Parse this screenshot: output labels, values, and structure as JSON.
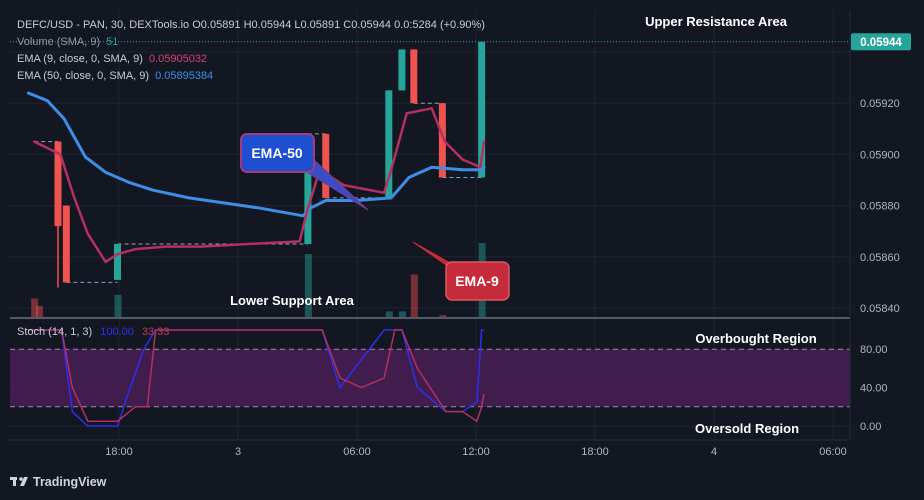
{
  "legend": {
    "line1": "DEFC/USD - PAN, 30, DEXTools.io  O0.05891  H0.05944  L0.05891  C0.05944  0.0:5284 (+0.90%)",
    "volume": "Volume (SMA, 9)",
    "volume_value": "51",
    "ema9": "EMA (9, close, 0, SMA, 9)",
    "ema9_value": "0.05905032",
    "ema50": "EMA (50, close, 0, SMA, 9)",
    "ema50_value": "0.05895384"
  },
  "stoch": {
    "label": "Stoch (14, 1, 3)",
    "k_value": "100.00",
    "d_value": "33.33"
  },
  "annotations": {
    "upper_resistance": "Upper Resistance Area",
    "lower_support": "Lower Support Area",
    "overbought": "Overbought Region",
    "oversold": "Oversold Region",
    "ema50_callout": "EMA-50",
    "ema9_callout": "EMA-9"
  },
  "price_tag": "0.05944",
  "footer": {
    "brand": "TradingView"
  },
  "colors": {
    "background": "#131722",
    "up": "#26a69a",
    "down": "#ef5350",
    "ema9": "#b5305f",
    "ema50": "#3d8ee6",
    "stoch_k": "#2e2ef0",
    "stoch_d": "#b23060",
    "stoch_band": "#4a1e55",
    "callout_blue": "#1e4fd1",
    "callout_red": "#c62b3b"
  },
  "chart_data": {
    "type": "candlestick",
    "symbol": "DEFC/USD",
    "interval": "30",
    "x_ticks": [
      "18:00",
      "3",
      "06:00",
      "12:00",
      "18:00",
      "4",
      "06:00"
    ],
    "y_ticks": [
      "0.05940",
      "0.05920",
      "0.05900",
      "0.05880",
      "0.05860",
      "0.05840"
    ],
    "y_tick_values": [
      0.0594,
      0.0592,
      0.059,
      0.0588,
      0.0586,
      0.0584
    ],
    "ylim": [
      0.05838,
      0.05952
    ],
    "grid": true,
    "candles": [
      {
        "t": 0,
        "o": 0.05905,
        "h": 0.05905,
        "l": 0.05848,
        "c": 0.05872
      },
      {
        "t": 0.7,
        "o": 0.0588,
        "h": 0.0588,
        "l": 0.0585,
        "c": 0.0585
      },
      {
        "t": 5,
        "o": 0.05851,
        "h": 0.05865,
        "l": 0.05851,
        "c": 0.05865
      },
      {
        "t": 21,
        "o": 0.05865,
        "h": 0.05908,
        "l": 0.05865,
        "c": 0.05908
      },
      {
        "t": 22.5,
        "o": 0.05908,
        "h": 0.05908,
        "l": 0.05883,
        "c": 0.05883
      },
      {
        "t": 27.8,
        "o": 0.05883,
        "h": 0.05925,
        "l": 0.05883,
        "c": 0.05925
      },
      {
        "t": 28.9,
        "o": 0.05925,
        "h": 0.05941,
        "l": 0.05925,
        "c": 0.05941
      },
      {
        "t": 29.9,
        "o": 0.05941,
        "h": 0.05941,
        "l": 0.0592,
        "c": 0.0592
      },
      {
        "t": 32.3,
        "o": 0.0592,
        "h": 0.0592,
        "l": 0.05891,
        "c": 0.05891
      },
      {
        "t": 35.6,
        "o": 0.05891,
        "h": 0.05944,
        "l": 0.05891,
        "c": 0.05944
      }
    ],
    "ema9": [
      [
        -2,
        0.05905
      ],
      [
        0.2,
        0.059
      ],
      [
        1.3,
        0.05884
      ],
      [
        2.5,
        0.05869
      ],
      [
        4,
        0.05858
      ],
      [
        5,
        0.05861
      ],
      [
        6.5,
        0.05863
      ],
      [
        9,
        0.05864
      ],
      [
        12,
        0.05864
      ],
      [
        16,
        0.05865
      ],
      [
        20.3,
        0.05866
      ],
      [
        21,
        0.05879
      ],
      [
        22,
        0.05894
      ],
      [
        24,
        0.05888
      ],
      [
        27.4,
        0.05885
      ],
      [
        28,
        0.05894
      ],
      [
        29.3,
        0.05916
      ],
      [
        31.4,
        0.05918
      ],
      [
        32.5,
        0.05905
      ],
      [
        34,
        0.05898
      ],
      [
        35.5,
        0.05895
      ],
      [
        35.8,
        0.05905
      ]
    ],
    "ema50": [
      [
        -2.5,
        0.05924
      ],
      [
        -0.9,
        0.05921
      ],
      [
        0.5,
        0.05914
      ],
      [
        2.3,
        0.05899
      ],
      [
        4,
        0.05893
      ],
      [
        6,
        0.05889
      ],
      [
        8,
        0.05886
      ],
      [
        11,
        0.05883
      ],
      [
        14,
        0.05881
      ],
      [
        17,
        0.05879
      ],
      [
        20.6,
        0.05876
      ],
      [
        21.2,
        0.05879
      ],
      [
        22.5,
        0.05882
      ],
      [
        25,
        0.05882
      ],
      [
        28,
        0.05883
      ],
      [
        29.5,
        0.05891
      ],
      [
        31.4,
        0.05895
      ],
      [
        34,
        0.05894
      ],
      [
        35.5,
        0.05894
      ],
      [
        35.8,
        0.05895
      ]
    ],
    "volume_bars": [
      {
        "t": -2,
        "v": 10,
        "dir": "down"
      },
      {
        "t": -1.6,
        "v": 6,
        "dir": "down"
      },
      {
        "t": 5,
        "v": 12,
        "dir": "up"
      },
      {
        "t": 21,
        "v": 34,
        "dir": "up"
      },
      {
        "t": 27.8,
        "v": 3,
        "dir": "up"
      },
      {
        "t": 28.9,
        "v": 3,
        "dir": "up"
      },
      {
        "t": 29.9,
        "v": 23,
        "dir": "down"
      },
      {
        "t": 32.3,
        "v": 1,
        "dir": "down"
      },
      {
        "t": 35.6,
        "v": 40,
        "dir": "up"
      }
    ],
    "stoch_ticks": [
      "80.00",
      "40.00",
      "0.00"
    ],
    "stoch_tick_values": [
      80,
      40,
      0
    ],
    "stoch_ylim": [
      -10,
      112
    ],
    "stoch_band": [
      20,
      80
    ],
    "stoch_k": [
      [
        -2.5,
        100
      ],
      [
        -1,
        100
      ],
      [
        0.3,
        100
      ],
      [
        1.2,
        15
      ],
      [
        2.5,
        0
      ],
      [
        5,
        0
      ],
      [
        5.8,
        30
      ],
      [
        7.2,
        80
      ],
      [
        8.2,
        100
      ],
      [
        13,
        100
      ],
      [
        20.5,
        100
      ],
      [
        22.2,
        100
      ],
      [
        23.7,
        40
      ],
      [
        27.4,
        100
      ],
      [
        28.9,
        100
      ],
      [
        30.2,
        40
      ],
      [
        32.6,
        15
      ],
      [
        34,
        15
      ],
      [
        35.2,
        25
      ],
      [
        35.6,
        100
      ],
      [
        35.8,
        100
      ]
    ],
    "stoch_d": [
      [
        -2.5,
        100
      ],
      [
        -1,
        100
      ],
      [
        0.3,
        100
      ],
      [
        1.2,
        40
      ],
      [
        2.5,
        5
      ],
      [
        5,
        5
      ],
      [
        6.5,
        20
      ],
      [
        7.5,
        20
      ],
      [
        8.2,
        100
      ],
      [
        13,
        100
      ],
      [
        20.5,
        100
      ],
      [
        22.2,
        100
      ],
      [
        23.7,
        50
      ],
      [
        25.5,
        40
      ],
      [
        27.4,
        50
      ],
      [
        28.3,
        100
      ],
      [
        28.9,
        100
      ],
      [
        30.2,
        60
      ],
      [
        32.6,
        15
      ],
      [
        34,
        15
      ],
      [
        35.2,
        5
      ],
      [
        35.6,
        20
      ],
      [
        35.8,
        33.33
      ]
    ]
  }
}
